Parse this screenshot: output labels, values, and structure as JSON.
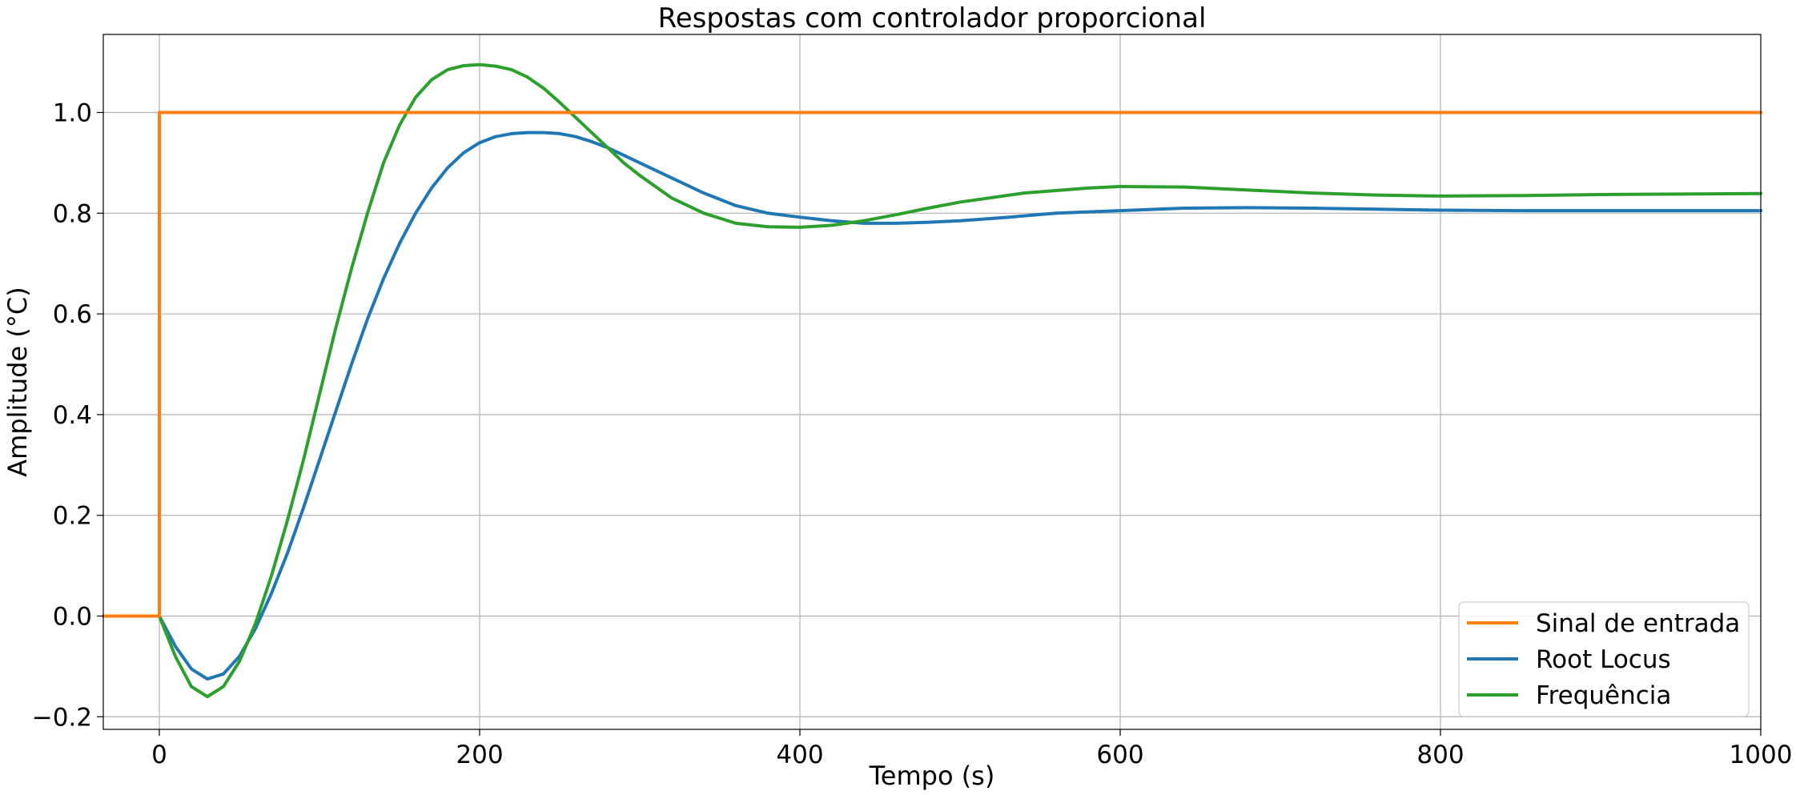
{
  "chart_data": {
    "type": "line",
    "title": "Respostas com controlador proporcional",
    "xlabel": "Tempo (s)",
    "ylabel": "Amplitude (°C)",
    "xlim": [
      -35,
      1000
    ],
    "ylim": [
      -0.225,
      1.155
    ],
    "x_ticks": [
      0,
      200,
      400,
      600,
      800,
      1000
    ],
    "y_ticks": [
      -0.2,
      0.0,
      0.2,
      0.4,
      0.6,
      0.8,
      1.0
    ],
    "x_tick_labels": [
      "0",
      "200",
      "400",
      "600",
      "800",
      "1000"
    ],
    "y_tick_labels": [
      "−0.2",
      "0.0",
      "0.2",
      "0.4",
      "0.6",
      "0.8",
      "1.0"
    ],
    "grid": true,
    "legend_position": "lower-right",
    "legend": [
      "Sinal de entrada",
      "Root Locus",
      "Frequência"
    ],
    "series": [
      {
        "name": "Sinal de entrada",
        "color": "#ff7f0e",
        "x": [
          -35,
          0,
          0,
          1000
        ],
        "y": [
          0,
          0,
          1,
          1
        ]
      },
      {
        "name": "Root Locus",
        "color": "#1f77b4",
        "x": [
          0,
          10,
          20,
          30,
          40,
          50,
          60,
          70,
          80,
          90,
          100,
          110,
          120,
          130,
          140,
          150,
          160,
          170,
          180,
          190,
          200,
          210,
          220,
          230,
          240,
          250,
          260,
          270,
          280,
          290,
          300,
          320,
          340,
          360,
          380,
          400,
          420,
          440,
          460,
          480,
          500,
          530,
          560,
          600,
          640,
          680,
          720,
          760,
          800,
          850,
          900,
          950,
          1000
        ],
        "y": [
          0,
          -0.06,
          -0.105,
          -0.125,
          -0.115,
          -0.08,
          -0.025,
          0.045,
          0.125,
          0.215,
          0.31,
          0.405,
          0.5,
          0.59,
          0.67,
          0.74,
          0.8,
          0.85,
          0.89,
          0.92,
          0.94,
          0.952,
          0.958,
          0.96,
          0.96,
          0.958,
          0.952,
          0.942,
          0.93,
          0.915,
          0.9,
          0.87,
          0.84,
          0.815,
          0.8,
          0.792,
          0.785,
          0.78,
          0.78,
          0.782,
          0.785,
          0.792,
          0.8,
          0.805,
          0.81,
          0.811,
          0.81,
          0.808,
          0.806,
          0.805,
          0.805,
          0.805,
          0.805
        ]
      },
      {
        "name": "Frequência",
        "color": "#2ca02c",
        "x": [
          0,
          10,
          20,
          30,
          40,
          50,
          60,
          70,
          80,
          90,
          100,
          110,
          120,
          130,
          140,
          150,
          160,
          170,
          180,
          190,
          200,
          210,
          220,
          230,
          240,
          250,
          260,
          270,
          280,
          290,
          300,
          320,
          340,
          360,
          380,
          400,
          420,
          440,
          460,
          480,
          500,
          540,
          580,
          600,
          640,
          680,
          720,
          760,
          800,
          850,
          900,
          950,
          1000
        ],
        "y": [
          0,
          -0.08,
          -0.14,
          -0.16,
          -0.14,
          -0.09,
          -0.015,
          0.08,
          0.19,
          0.31,
          0.44,
          0.57,
          0.69,
          0.8,
          0.9,
          0.975,
          1.03,
          1.065,
          1.085,
          1.093,
          1.095,
          1.092,
          1.085,
          1.07,
          1.048,
          1.02,
          0.99,
          0.96,
          0.93,
          0.9,
          0.875,
          0.83,
          0.8,
          0.78,
          0.773,
          0.772,
          0.776,
          0.785,
          0.797,
          0.81,
          0.822,
          0.84,
          0.85,
          0.853,
          0.852,
          0.846,
          0.84,
          0.836,
          0.834,
          0.835,
          0.837,
          0.838,
          0.839
        ]
      }
    ]
  }
}
